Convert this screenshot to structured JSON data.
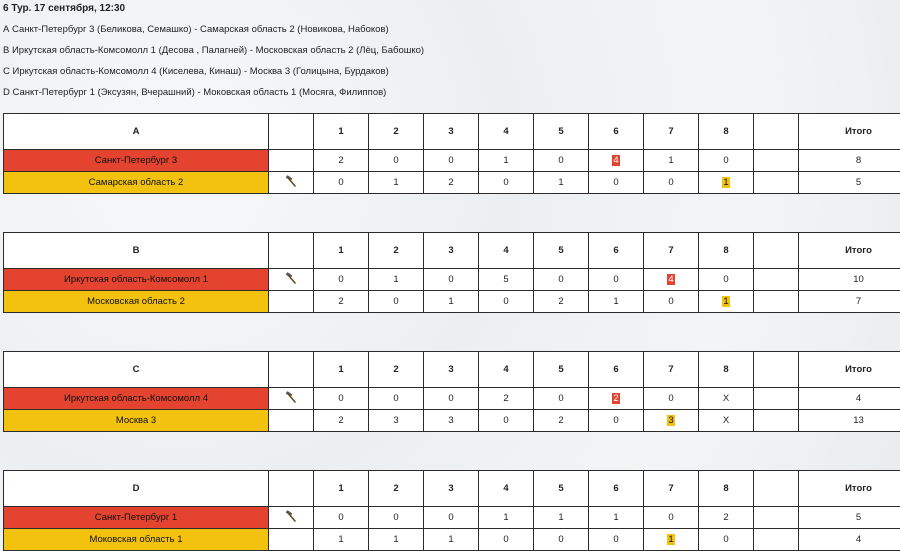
{
  "header": {
    "title": "6 Тур. 17 сентября, 12:30",
    "matches": [
      "А Санкт-Петербург 3 (Беликова, Семашко) - Самарская область 2 (Новикова, Набоков)",
      "B Иркутская область-Комсомолл 1 (Десова , Палагней) - Московская область 2 (Лёц, Бабошко)",
      "C Иркутская область-Комсомолл 4 (Киселева, Кинаш) - Москва 3 (Голицына, Бурдаков)",
      "D Санкт-Петербург 1 (Эксузян, Вчерашний) - Моковская область 1 (Мосяга, Филиппов)"
    ]
  },
  "columns": [
    "1",
    "2",
    "3",
    "4",
    "5",
    "6",
    "7",
    "8"
  ],
  "total_label": "Итого",
  "tables": [
    {
      "sheet": "A",
      "rows": [
        {
          "team": "Санкт-Петербург 3",
          "color": "red",
          "hammer": false,
          "ends": [
            "2",
            "0",
            "0",
            "1",
            "0",
            "4",
            "1",
            "0"
          ],
          "total": "8",
          "highlight": [
            5
          ]
        },
        {
          "team": "Самарская область 2",
          "color": "yellow",
          "hammer": true,
          "ends": [
            "0",
            "1",
            "2",
            "0",
            "1",
            "0",
            "0",
            "1"
          ],
          "total": "5",
          "highlight": [
            7
          ]
        }
      ]
    },
    {
      "sheet": "B",
      "rows": [
        {
          "team": "Иркутская область-Комсомолл 1",
          "color": "red",
          "hammer": true,
          "ends": [
            "0",
            "1",
            "0",
            "5",
            "0",
            "0",
            "4",
            "0"
          ],
          "total": "10",
          "highlight": [
            6
          ]
        },
        {
          "team": "Московская область 2",
          "color": "yellow",
          "hammer": false,
          "ends": [
            "2",
            "0",
            "1",
            "0",
            "2",
            "1",
            "0",
            "1"
          ],
          "total": "7",
          "highlight": [
            7
          ]
        }
      ]
    },
    {
      "sheet": "C",
      "rows": [
        {
          "team": "Иркутская область-Комсомолл 4",
          "color": "red",
          "hammer": true,
          "ends": [
            "0",
            "0",
            "0",
            "2",
            "0",
            "2",
            "0",
            "X"
          ],
          "total": "4",
          "highlight": [
            5
          ]
        },
        {
          "team": "Москва 3",
          "color": "yellow",
          "hammer": false,
          "ends": [
            "2",
            "3",
            "3",
            "0",
            "2",
            "0",
            "3",
            "X"
          ],
          "total": "13",
          "highlight": [
            6
          ]
        }
      ]
    },
    {
      "sheet": "D",
      "rows": [
        {
          "team": "Санкт-Петербург 1",
          "color": "red",
          "hammer": true,
          "ends": [
            "0",
            "0",
            "0",
            "1",
            "1",
            "1",
            "0",
            "2"
          ],
          "total": "5",
          "highlight": []
        },
        {
          "team": "Моковская область 1",
          "color": "yellow",
          "hammer": false,
          "ends": [
            "1",
            "1",
            "1",
            "0",
            "0",
            "0",
            "1",
            "0"
          ],
          "total": "4",
          "highlight": [
            6
          ]
        }
      ]
    }
  ]
}
